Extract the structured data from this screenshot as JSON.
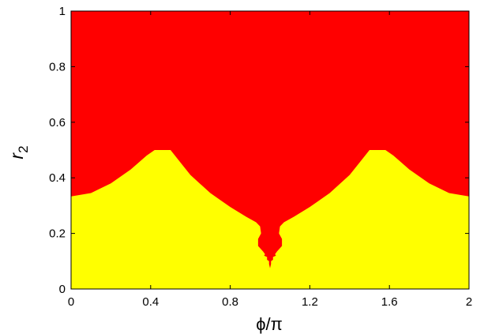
{
  "chart_data": {
    "type": "heatmap",
    "title": "",
    "xlabel": "ϕ/π",
    "ylabel": {
      "base": "r",
      "subscript": "2"
    },
    "xlim": [
      0,
      2
    ],
    "ylim": [
      0,
      1
    ],
    "xticks": [
      "0",
      "0.4",
      "0.8",
      "1.2",
      "1.6",
      "2"
    ],
    "yticks": [
      "0",
      "0.2",
      "0.4",
      "0.6",
      "0.8",
      "1"
    ],
    "grid": false,
    "legend": "none",
    "regions": [
      {
        "color": "#FF0000",
        "side": "above boundary"
      },
      {
        "color": "#FFFF00",
        "side": "below boundary"
      }
    ],
    "boundary": [
      [
        0.0,
        0.333
      ],
      [
        0.1,
        0.345
      ],
      [
        0.2,
        0.38
      ],
      [
        0.3,
        0.43
      ],
      [
        0.38,
        0.48
      ],
      [
        0.42,
        0.5
      ],
      [
        0.46,
        0.5
      ],
      [
        0.5,
        0.5
      ],
      [
        0.55,
        0.455
      ],
      [
        0.6,
        0.41
      ],
      [
        0.7,
        0.345
      ],
      [
        0.8,
        0.295
      ],
      [
        0.88,
        0.26
      ],
      [
        0.93,
        0.24
      ],
      [
        0.95,
        0.225
      ],
      [
        0.955,
        0.2
      ],
      [
        0.94,
        0.18
      ],
      [
        0.94,
        0.155
      ],
      [
        0.965,
        0.135
      ],
      [
        0.975,
        0.125
      ],
      [
        0.97,
        0.12
      ],
      [
        0.985,
        0.115
      ],
      [
        0.985,
        0.105
      ],
      [
        0.995,
        0.1
      ],
      [
        0.995,
        0.09
      ],
      [
        1.0,
        0.075
      ],
      [
        1.005,
        0.09
      ],
      [
        1.005,
        0.1
      ],
      [
        1.015,
        0.105
      ],
      [
        1.015,
        0.115
      ],
      [
        1.03,
        0.12
      ],
      [
        1.025,
        0.125
      ],
      [
        1.035,
        0.135
      ],
      [
        1.06,
        0.155
      ],
      [
        1.06,
        0.18
      ],
      [
        1.045,
        0.2
      ],
      [
        1.05,
        0.225
      ],
      [
        1.07,
        0.24
      ],
      [
        1.12,
        0.26
      ],
      [
        1.2,
        0.295
      ],
      [
        1.3,
        0.345
      ],
      [
        1.4,
        0.41
      ],
      [
        1.45,
        0.455
      ],
      [
        1.5,
        0.5
      ],
      [
        1.54,
        0.5
      ],
      [
        1.58,
        0.5
      ],
      [
        1.62,
        0.48
      ],
      [
        1.7,
        0.43
      ],
      [
        1.8,
        0.38
      ],
      [
        1.9,
        0.345
      ],
      [
        2.0,
        0.333
      ]
    ]
  }
}
